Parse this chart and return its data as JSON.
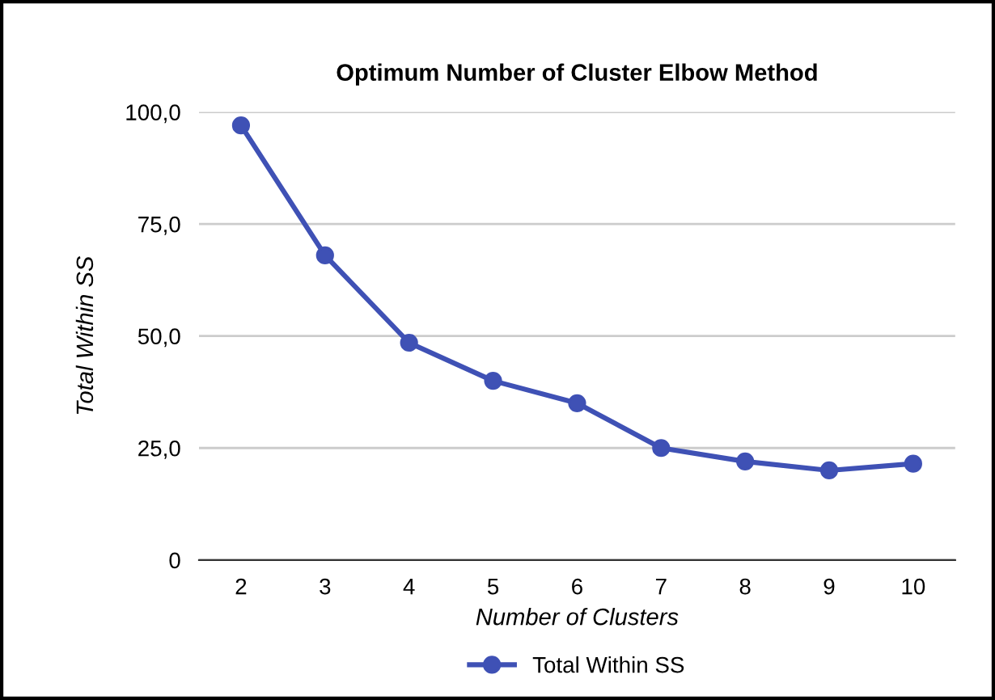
{
  "chart_data": {
    "type": "line",
    "title": "Optimum Number of Cluster Elbow Method",
    "xlabel": "Number of Clusters",
    "ylabel": "Total Within SS",
    "categories": [
      "2",
      "3",
      "4",
      "5",
      "6",
      "7",
      "8",
      "9",
      "10"
    ],
    "series": [
      {
        "name": "Total Within SS",
        "color": "#3f51b5",
        "values": [
          97,
          68,
          48.5,
          40,
          35,
          25,
          22,
          20,
          21.5
        ]
      }
    ],
    "ylim": [
      0,
      100
    ],
    "yticks": [
      {
        "value": 0,
        "label": "0"
      },
      {
        "value": 25,
        "label": "25,0"
      },
      {
        "value": 50,
        "label": "50,0"
      },
      {
        "value": 75,
        "label": "75,0"
      },
      {
        "value": 100,
        "label": "100,0"
      }
    ],
    "grid": "y",
    "legend": "bottom",
    "marker": "circle",
    "line_style": "solid"
  }
}
